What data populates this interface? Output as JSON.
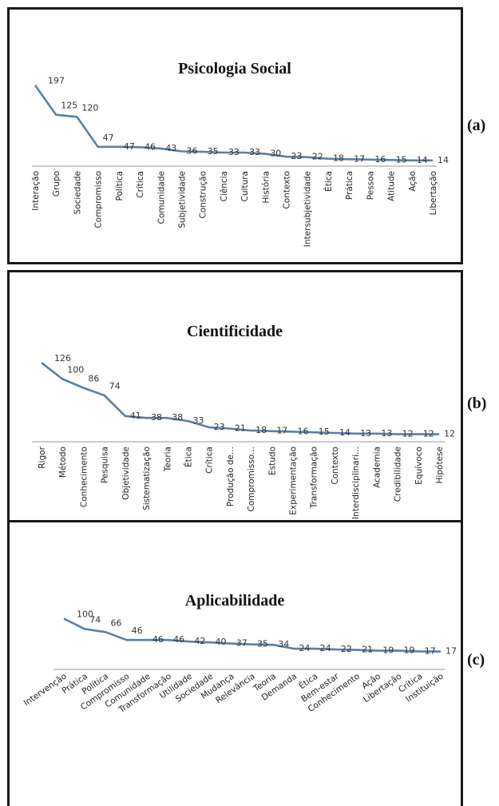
{
  "chart_data": [
    {
      "type": "line",
      "title": "Psicologia Social",
      "panel_label": "(a)",
      "categories": [
        "Interação",
        "Grupo",
        "Sociedade",
        "Compromisso",
        "Política",
        "Crítica",
        "Comunidade",
        "Subjetividade",
        "Construção",
        "Ciência",
        "Cultura",
        "História",
        "Contexto",
        "Intersubjetividade",
        "Ética",
        "Prática",
        "Pessoa",
        "Atitude",
        "Ação",
        "Libertação"
      ],
      "values": [
        197,
        125,
        120,
        47,
        47,
        46,
        43,
        36,
        35,
        33,
        33,
        30,
        23,
        22,
        18,
        17,
        16,
        15,
        14,
        14
      ],
      "ylim": [
        0,
        210
      ],
      "line_color": "#5b7ea6",
      "tick_rotation": "vertical",
      "grid": false
    },
    {
      "type": "line",
      "title": "Cientificidade",
      "panel_label": "(b)",
      "categories": [
        "Rigor",
        "Método",
        "Conhecimento",
        "Pesquisa",
        "Objetividade",
        "Sistematização",
        "Teoria",
        "Ética",
        "Crítica",
        "Produção de...",
        "Compromisso...",
        "Estudo",
        "Experimentação",
        "Transformação",
        "Contexto",
        "Interdisciplinari...",
        "Academia",
        "Credibilidade",
        "Equívoco",
        "Hipótese"
      ],
      "values": [
        126,
        100,
        86,
        74,
        41,
        38,
        38,
        33,
        23,
        21,
        18,
        17,
        16,
        15,
        14,
        13,
        13,
        12,
        12,
        12
      ],
      "ylim": [
        0,
        135
      ],
      "line_color": "#5b7ea6",
      "tick_rotation": "vertical",
      "grid": false
    },
    {
      "type": "line",
      "title": "Aplicabilidade",
      "panel_label": "(c)",
      "categories": [
        "Intervenção",
        "Prática",
        "Política",
        "Compromisso",
        "Comunidade",
        "Transformação",
        "Utilidade",
        "Sociedade",
        "Mudança",
        "Relevância",
        "Teoria",
        "Demanda",
        "Ética",
        "Bem-estar",
        "Conhecimento",
        "Ação",
        "Libertação",
        "Crítica",
        "Instituição"
      ],
      "values": [
        100,
        74,
        66,
        46,
        46,
        46,
        42,
        40,
        37,
        35,
        34,
        24,
        24,
        22,
        21,
        19,
        19,
        17,
        17
      ],
      "ylim": [
        0,
        105
      ],
      "line_color": "#5b7ea6",
      "tick_rotation": "diagonal",
      "grid": false
    }
  ]
}
